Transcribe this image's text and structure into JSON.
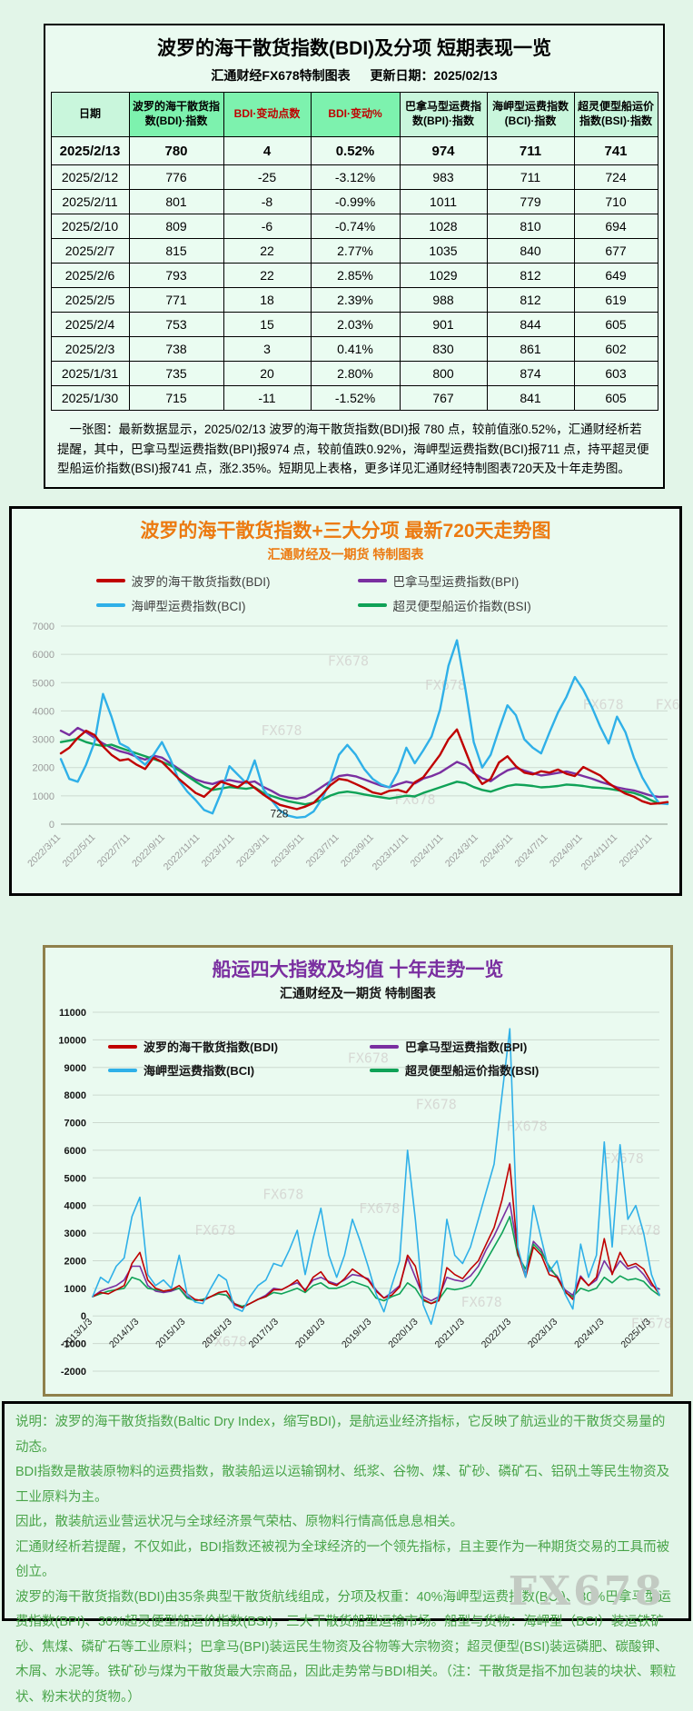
{
  "table_panel": {
    "title": "波罗的海干散货指数(BDI)及分项 短期表现一览",
    "source_label": "汇通财经FX678特制图表",
    "update_label": "更新日期：2025/02/13",
    "columns": [
      "日期",
      "波罗的海干散货指数(BDI)·指数",
      "BDI·变动点数",
      "BDI·变动%",
      "巴拿马型运费指数(BPI)·指数",
      "海岬型运费指数(BCI)·指数",
      "超灵便型船运价指数(BSI)·指数"
    ],
    "rows": [
      [
        "2025/2/13",
        "780",
        "4",
        "0.52%",
        "974",
        "711",
        "741"
      ],
      [
        "2025/2/12",
        "776",
        "-25",
        "-3.12%",
        "983",
        "711",
        "724"
      ],
      [
        "2025/2/11",
        "801",
        "-8",
        "-0.99%",
        "1011",
        "779",
        "710"
      ],
      [
        "2025/2/10",
        "809",
        "-6",
        "-0.74%",
        "1028",
        "810",
        "694"
      ],
      [
        "2025/2/7",
        "815",
        "22",
        "2.77%",
        "1035",
        "840",
        "677"
      ],
      [
        "2025/2/6",
        "793",
        "22",
        "2.85%",
        "1029",
        "812",
        "649"
      ],
      [
        "2025/2/5",
        "771",
        "18",
        "2.39%",
        "988",
        "812",
        "619"
      ],
      [
        "2025/2/4",
        "753",
        "15",
        "2.03%",
        "901",
        "844",
        "605"
      ],
      [
        "2025/2/3",
        "738",
        "3",
        "0.41%",
        "830",
        "861",
        "602"
      ],
      [
        "2025/1/31",
        "735",
        "20",
        "2.80%",
        "800",
        "874",
        "603"
      ],
      [
        "2025/1/30",
        "715",
        "-11",
        "-1.52%",
        "767",
        "841",
        "605"
      ]
    ],
    "note": "一张图：最新数据显示，2025/02/13 波罗的海干散货指数(BDI)报 780 点，较前值涨0.52%，汇通财经析若提醒，其中，巴拿马型运费指数(BPI)报974 点，较前值跌0.92%，海岬型运费指数(BCI)报711 点，持平超灵便型船运价指数(BSI)报741 点，涨2.35%。短期见上表格，更多详见汇通财经特制图表720天及十年走势图。"
  },
  "chart_data": [
    {
      "type": "line",
      "title": "波罗的海干散货指数+三大分项  最新720天走势图",
      "subtitle": "汇通财经及一期货 特制图表",
      "xlabel": "",
      "ylabel": "",
      "ylim": [
        0,
        7000
      ],
      "ytick_step": 1000,
      "grid": true,
      "legend_position": "top",
      "watermark": "FX678",
      "annotation": {
        "text": "728",
        "x_frac": 0.345,
        "value": 728
      },
      "x_ticklabels": [
        "2022/3/11",
        "2022/5/11",
        "2022/7/11",
        "2022/9/11",
        "2022/11/11",
        "2023/1/11",
        "2023/3/11",
        "2023/5/11",
        "2023/7/11",
        "2023/9/11",
        "2023/11/11",
        "2024/1/11",
        "2024/3/11",
        "2024/5/11",
        "2024/7/11",
        "2024/9/11",
        "2024/11/11",
        "2025/1/11"
      ],
      "series": [
        {
          "name": "波罗的海干散货指数(BDI)",
          "color": "#c00000",
          "values": [
            2500,
            2700,
            3050,
            3300,
            3150,
            2750,
            2450,
            2250,
            2300,
            2100,
            1950,
            2350,
            2200,
            1900,
            1600,
            1350,
            1100,
            965,
            1250,
            1500,
            1400,
            1300,
            1520,
            1280,
            1050,
            850,
            680,
            605,
            530,
            620,
            750,
            1050,
            1380,
            1600,
            1550,
            1420,
            1280,
            1120,
            1060,
            1180,
            1210,
            1120,
            1480,
            1650,
            2050,
            2450,
            3000,
            3346,
            2600,
            1850,
            1420,
            1600,
            2180,
            2400,
            2050,
            1820,
            1760,
            1870,
            1820,
            1930,
            1780,
            1700,
            2020,
            1870,
            1720,
            1450,
            1250,
            1080,
            970,
            810,
            715,
            735,
            780
          ]
        },
        {
          "name": "巴拿马型运费指数(BPI)",
          "color": "#7a2fa0",
          "values": [
            3300,
            3150,
            3400,
            3250,
            3050,
            2850,
            2700,
            2580,
            2500,
            2380,
            2280,
            2420,
            2350,
            2150,
            1950,
            1750,
            1580,
            1480,
            1420,
            1520,
            1560,
            1500,
            1460,
            1510,
            1320,
            1180,
            1010,
            940,
            900,
            960,
            1120,
            1320,
            1520,
            1700,
            1740,
            1690,
            1580,
            1470,
            1360,
            1300,
            1410,
            1500,
            1440,
            1610,
            1700,
            1820,
            2010,
            2200,
            2080,
            1800,
            1620,
            1520,
            1720,
            1900,
            1990,
            1890,
            1800,
            1720,
            1760,
            1810,
            1860,
            1790,
            1700,
            1610,
            1500,
            1410,
            1300,
            1240,
            1190,
            1100,
            1010,
            960,
            974
          ]
        },
        {
          "name": "海岬型运费指数(BCI)",
          "color": "#2fb0e8",
          "values": [
            2300,
            1600,
            1500,
            2100,
            2900,
            4600,
            3800,
            2850,
            2700,
            2350,
            2100,
            2450,
            2900,
            2300,
            1550,
            1150,
            850,
            500,
            380,
            1100,
            2050,
            1750,
            1450,
            2250,
            1250,
            850,
            480,
            300,
            230,
            260,
            450,
            900,
            1550,
            2450,
            2800,
            2450,
            1950,
            1600,
            1400,
            1300,
            1850,
            2700,
            2150,
            2600,
            3100,
            4050,
            5600,
            6500,
            4800,
            2900,
            2000,
            2450,
            3350,
            4200,
            3850,
            3000,
            2700,
            2500,
            3250,
            3950,
            4500,
            5200,
            4750,
            4150,
            3450,
            2850,
            3800,
            3250,
            2350,
            1650,
            1150,
            740,
            711
          ]
        },
        {
          "name": "超灵便型船运价指数(BSI)",
          "color": "#0fa257",
          "values": [
            2900,
            2950,
            3020,
            2900,
            2820,
            2760,
            2810,
            2700,
            2600,
            2500,
            2400,
            2300,
            2200,
            2080,
            1900,
            1700,
            1500,
            1320,
            1210,
            1260,
            1310,
            1280,
            1250,
            1300,
            1110,
            1000,
            900,
            810,
            750,
            700,
            760,
            860,
            1010,
            1110,
            1150,
            1110,
            1050,
            1000,
            950,
            905,
            955,
            1005,
            980,
            1100,
            1200,
            1300,
            1400,
            1500,
            1450,
            1310,
            1210,
            1150,
            1250,
            1350,
            1400,
            1380,
            1350,
            1300,
            1320,
            1350,
            1400,
            1380,
            1350,
            1300,
            1280,
            1250,
            1200,
            1150,
            1100,
            1000,
            850,
            728,
            741
          ]
        }
      ]
    },
    {
      "type": "line",
      "title": "船运四大指数及均值 十年走势一览",
      "subtitle": "汇通财经及一期货 特制图表",
      "xlabel": "",
      "ylabel": "",
      "ylim": [
        -2000,
        11000
      ],
      "ytick_step": 1000,
      "grid": true,
      "legend_position": "top-inside",
      "watermark": "FX678",
      "x_ticklabels": [
        "2013/1/3",
        "2014/1/3",
        "2015/1/3",
        "2016/1/3",
        "2017/1/3",
        "2018/1/3",
        "2019/1/3",
        "2020/1/3",
        "2021/1/3",
        "2022/1/3",
        "2023/1/3",
        "2024/1/3",
        "2025/1/3"
      ],
      "series": [
        {
          "name": "波罗的海干散货指数(BDI)",
          "color": "#c00000",
          "values": [
            700,
            850,
            800,
            950,
            1100,
            1900,
            2300,
            1300,
            1000,
            900,
            950,
            1100,
            800,
            600,
            550,
            700,
            850,
            900,
            450,
            300,
            450,
            600,
            700,
            950,
            950,
            1100,
            1300,
            900,
            1400,
            1600,
            1200,
            1100,
            1350,
            1700,
            1500,
            1300,
            900,
            650,
            750,
            1050,
            2200,
            1800,
            600,
            450,
            550,
            1750,
            1500,
            1350,
            1700,
            2000,
            2600,
            3200,
            4200,
            5500,
            2300,
            1400,
            2500,
            2200,
            1500,
            1400,
            900,
            600,
            1400,
            1100,
            1400,
            2800,
            1500,
            2300,
            1800,
            1900,
            1700,
            1200,
            780
          ]
        },
        {
          "name": "巴拿马型运费指数(BPI)",
          "color": "#7a2fa0",
          "values": [
            700,
            900,
            1000,
            1100,
            1300,
            1800,
            1800,
            1100,
            900,
            850,
            900,
            1000,
            700,
            550,
            600,
            700,
            800,
            750,
            400,
            300,
            450,
            600,
            750,
            1000,
            950,
            1100,
            1200,
            950,
            1300,
            1400,
            1250,
            1150,
            1300,
            1500,
            1450,
            1350,
            950,
            650,
            850,
            1100,
            2100,
            1400,
            700,
            550,
            700,
            1400,
            1300,
            1250,
            1450,
            1800,
            2400,
            2900,
            3500,
            4100,
            2400,
            1500,
            2700,
            2400,
            1700,
            1450,
            950,
            750,
            1450,
            1100,
            1300,
            2000,
            1550,
            2000,
            1700,
            1800,
            1500,
            1100,
            974
          ]
        },
        {
          "name": "海岬型运费指数(BCI)",
          "color": "#2fb0e8",
          "values": [
            700,
            1400,
            1200,
            1800,
            2100,
            3600,
            4300,
            1500,
            1100,
            1300,
            1000,
            2200,
            800,
            500,
            450,
            1000,
            1500,
            1300,
            300,
            170,
            700,
            1100,
            1300,
            1900,
            1800,
            2400,
            3100,
            1500,
            2800,
            3900,
            2200,
            1400,
            2200,
            3500,
            2700,
            1800,
            800,
            150,
            1100,
            2000,
            6000,
            3500,
            400,
            -300,
            800,
            3500,
            2200,
            1900,
            2500,
            3500,
            4500,
            5500,
            8000,
            10400,
            2500,
            1400,
            4000,
            2800,
            1600,
            2000,
            800,
            250,
            2600,
            1400,
            2200,
            6300,
            2500,
            6200,
            3500,
            4000,
            3000,
            1500,
            750
          ]
        },
        {
          "name": "超灵便型船运价指数(BSI)",
          "color": "#0fa257",
          "values": [
            700,
            800,
            900,
            950,
            1000,
            1400,
            1300,
            1000,
            950,
            900,
            950,
            1000,
            650,
            550,
            600,
            700,
            800,
            750,
            450,
            350,
            450,
            600,
            700,
            850,
            800,
            900,
            1000,
            850,
            1100,
            1200,
            1000,
            1000,
            1100,
            1250,
            1150,
            1050,
            650,
            550,
            700,
            800,
            1200,
            1000,
            550,
            450,
            600,
            1000,
            950,
            1000,
            1100,
            1500,
            2000,
            2500,
            3000,
            3600,
            2200,
            1700,
            2600,
            2300,
            1800,
            1400,
            850,
            700,
            1000,
            900,
            1000,
            1400,
            1200,
            1450,
            1300,
            1350,
            1250,
            950,
            741
          ]
        }
      ]
    }
  ],
  "footer": {
    "paragraphs": [
      "说明：波罗的海干散货指数(Baltic Dry Index，缩写BDI)，是航运业经济指标，它反映了航运业的干散货交易量的动态。",
      "BDI指数是散装原物料的运费指数，散装船运以运输钢材、纸浆、谷物、煤、矿砂、磷矿石、铝矾土等民生物资及工业原料为主。",
      "因此，散装航运业营运状况与全球经济景气荣枯、原物料行情高低息息相关。",
      "汇通财经析若提醒，不仅如此，BDI指数还被视为全球经济的一个领先指标，且主要作为一种期货交易的工具而被创立。",
      "波罗的海干散货指数(BDI)由35条典型干散货航线组成，分项及权重：40%海岬型运费指数(BCI)、30%巴拿马型运费指数(BPI)、30%超灵便型船运价指数(BSI)，三大干散货船型运输市场。船型与货物：海岬型（BCI）装运铁矿砂、焦煤、磷矿石等工业原料；巴拿马(BPI)装运民生物资及谷物等大宗物资；超灵便型(BSI)装运磷肥、碳酸钾、木屑、水泥等。铁矿砂与煤为干散货最大宗商品，因此走势常与BDI相关。（注：干散货是指不加包装的块状、颗粒状、粉末状的货物。）"
    ],
    "watermark": "FX678"
  }
}
